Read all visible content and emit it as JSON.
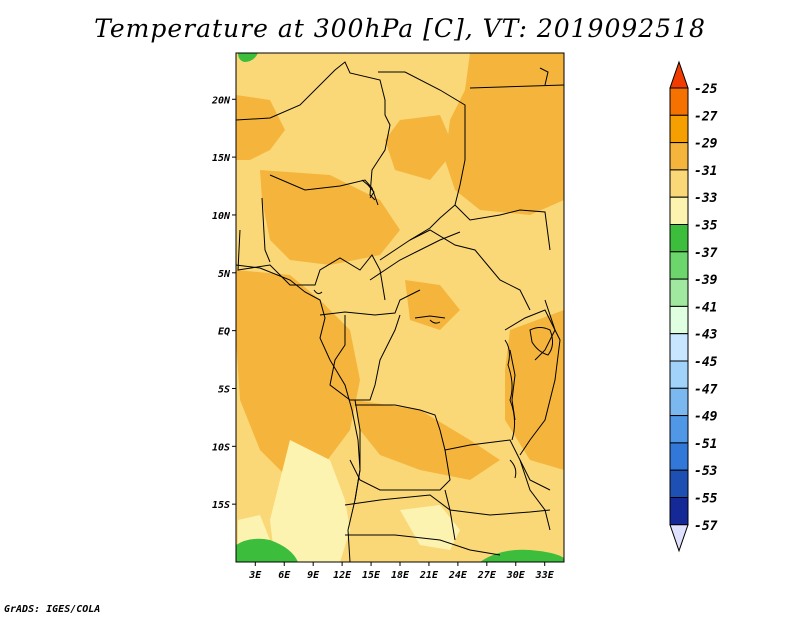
{
  "title": "Temperature at 300hPa [C], VT: 2019092518",
  "credit": "GrADS: IGES/COLA",
  "map": {
    "lat_range": [
      -20,
      24
    ],
    "lon_range": [
      1,
      35
    ],
    "lat_ticks": [
      "20N",
      "15N",
      "10N",
      "5N",
      "EQ",
      "5S",
      "10S",
      "15S"
    ],
    "lon_ticks": [
      "3E",
      "6E",
      "9E",
      "12E",
      "15E",
      "18E",
      "21E",
      "24E",
      "27E",
      "30E",
      "33E"
    ]
  },
  "colorbar": {
    "labels": [
      "-25",
      "-27",
      "-29",
      "-31",
      "-33",
      "-35",
      "-37",
      "-39",
      "-41",
      "-43",
      "-45",
      "-47",
      "-49",
      "-51",
      "-53",
      "-55",
      "-57"
    ],
    "colors": [
      "#f03c00",
      "#f57200",
      "#f5a000",
      "#f5b53c",
      "#fad878",
      "#fdf3b0",
      "#3cbe3c",
      "#6cd56c",
      "#a0e8a0",
      "#e0ffe0",
      "#c8e6ff",
      "#a0d2fa",
      "#7cb8f0",
      "#5098e6",
      "#3278d8",
      "#1e50b4",
      "#142896",
      "#0a0a6e"
    ],
    "top_arrow_color": "#f03c00",
    "bottom_arrow_color": "#e0e0ff"
  },
  "fields": {
    "warm_color": "#f5b53c",
    "mid_color": "#fad878",
    "cool_color": "#fdf3b0",
    "green_color": "#3cbe3c"
  }
}
